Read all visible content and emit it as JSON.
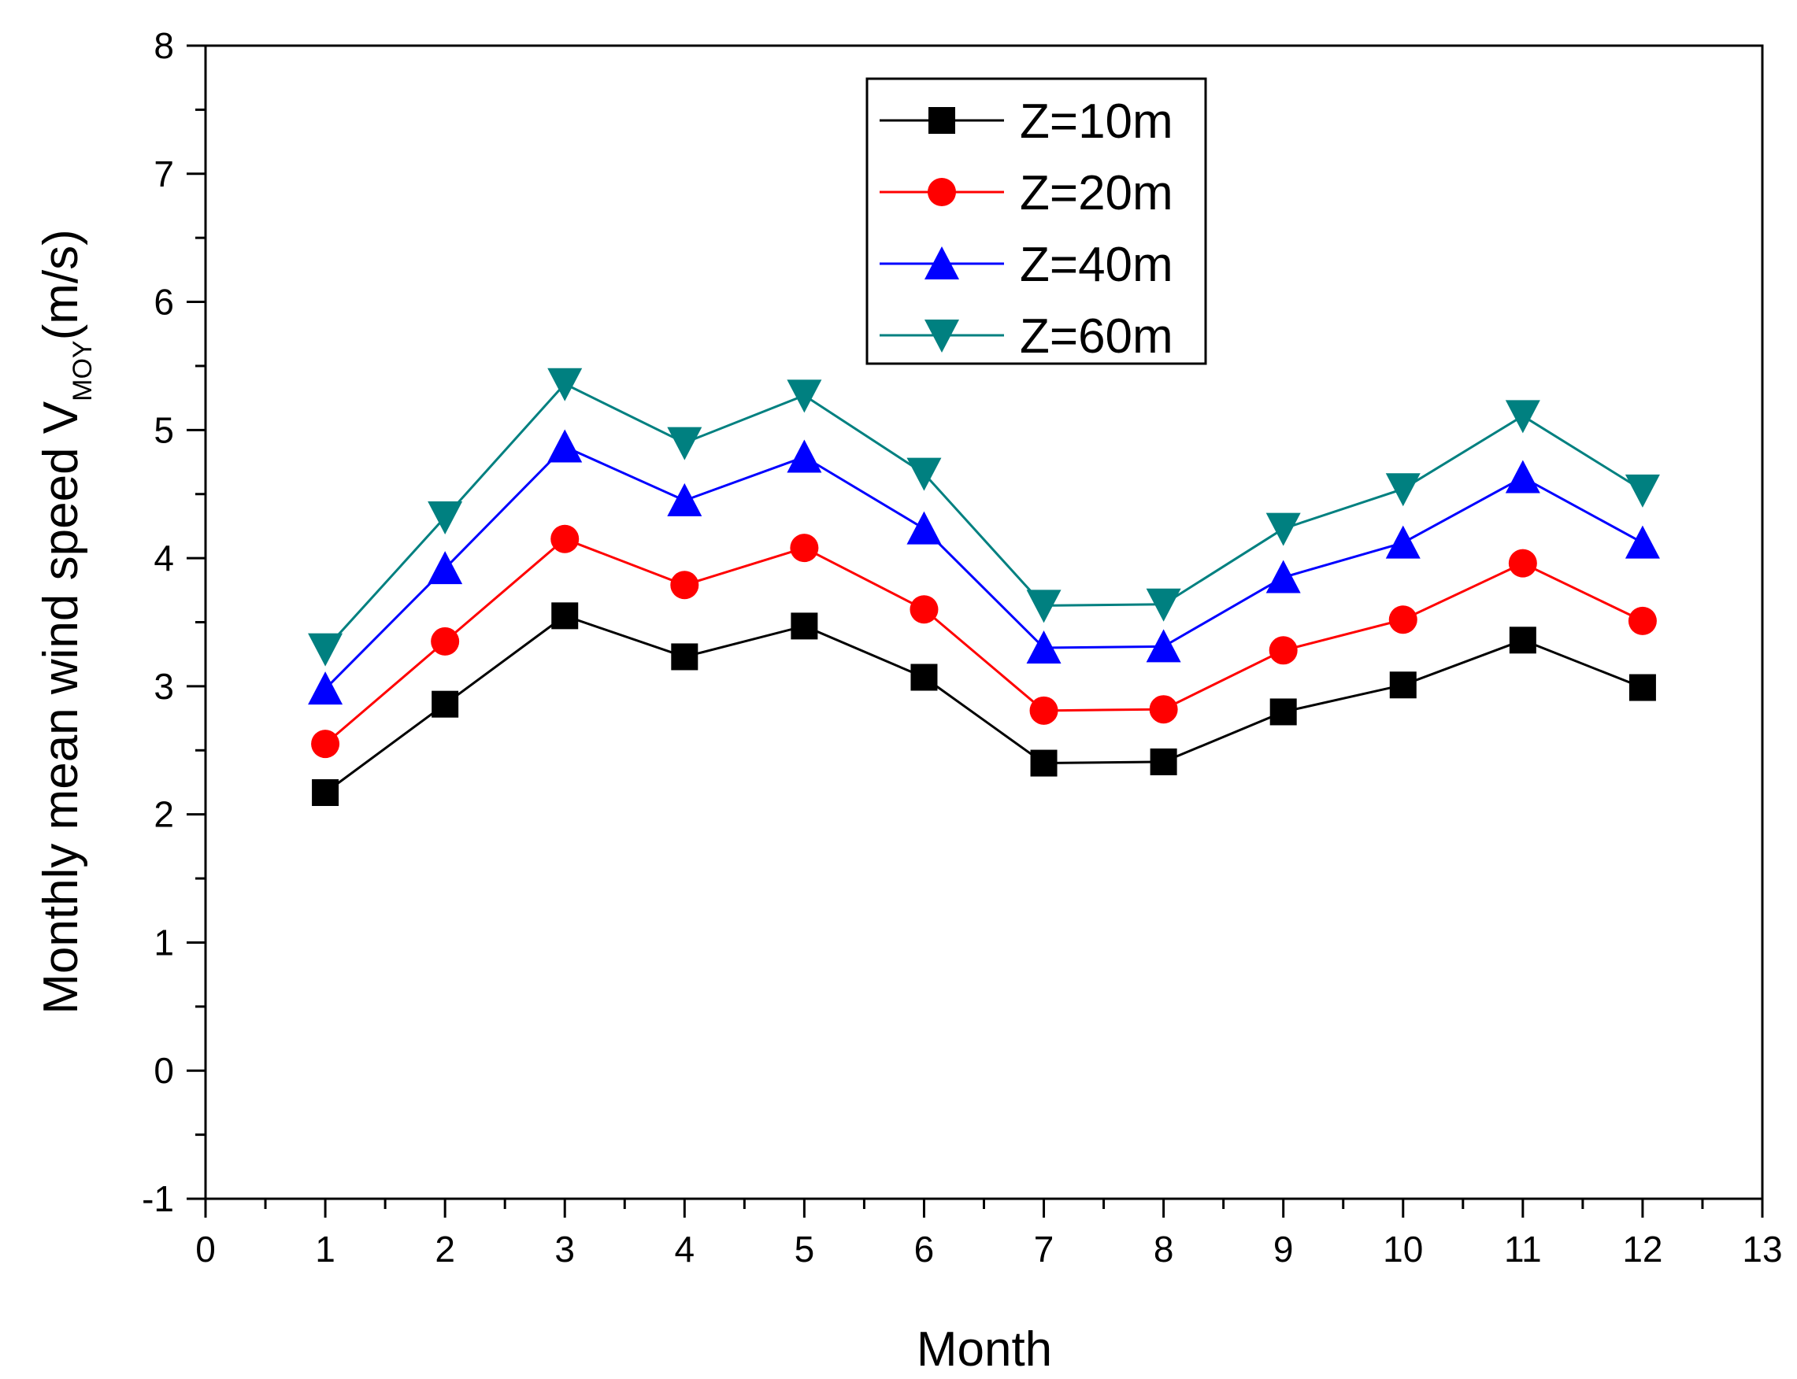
{
  "chart_data": {
    "type": "line",
    "title": "",
    "xlabel": "Month",
    "ylabel_main": "Monthly mean wind speed  V",
    "ylabel_sub": "MOY",
    "ylabel_unit": "(m/s)",
    "xlim": [
      0,
      13
    ],
    "ylim": [
      -1,
      8
    ],
    "x_ticks": [
      "0",
      "1",
      "2",
      "3",
      "4",
      "5",
      "6",
      "7",
      "8",
      "9",
      "10",
      "11",
      "12",
      "13"
    ],
    "y_ticks": [
      "-1",
      "0",
      "1",
      "2",
      "3",
      "4",
      "5",
      "6",
      "7",
      "8"
    ],
    "grid": false,
    "legend_position": "top-center",
    "x": [
      1,
      2,
      3,
      4,
      5,
      6,
      7,
      8,
      9,
      10,
      11,
      12
    ],
    "series": [
      {
        "name": "Z=10m",
        "color": "#000000",
        "marker": "square",
        "values": [
          2.17,
          2.86,
          3.55,
          3.23,
          3.47,
          3.07,
          2.4,
          2.41,
          2.8,
          3.01,
          3.36,
          2.99
        ]
      },
      {
        "name": "Z=20m",
        "color": "#ff0000",
        "marker": "circle",
        "values": [
          2.55,
          3.35,
          4.15,
          3.79,
          4.08,
          3.6,
          2.81,
          2.82,
          3.28,
          3.52,
          3.96,
          3.51
        ]
      },
      {
        "name": "Z=40m",
        "color": "#0000ff",
        "marker": "triangle-up",
        "values": [
          2.98,
          3.92,
          4.87,
          4.45,
          4.79,
          4.23,
          3.3,
          3.31,
          3.85,
          4.12,
          4.63,
          4.12
        ]
      },
      {
        "name": "Z=60m",
        "color": "#008080",
        "marker": "triangle-down",
        "values": [
          3.29,
          4.32,
          5.36,
          4.9,
          5.27,
          4.66,
          3.63,
          3.64,
          4.23,
          4.54,
          5.11,
          4.53
        ]
      }
    ]
  }
}
